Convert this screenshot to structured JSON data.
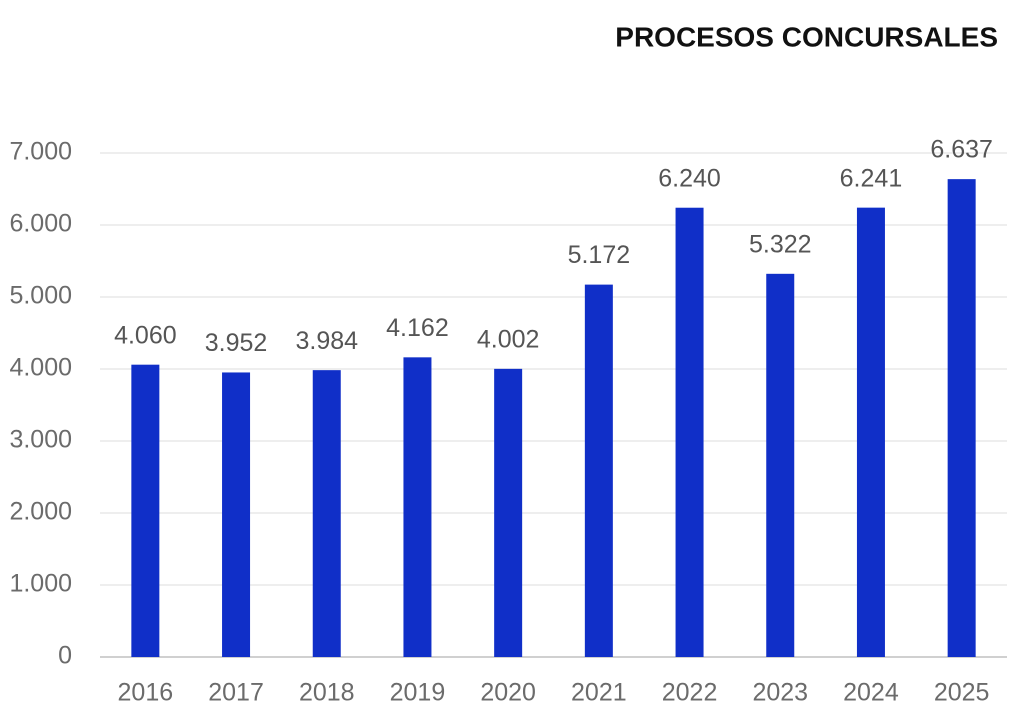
{
  "chart_data": {
    "type": "bar",
    "title": "PROCESOS CONCURSALES",
    "categories": [
      "2016",
      "2017",
      "2018",
      "2019",
      "2020",
      "2021",
      "2022",
      "2023",
      "2024",
      "2025"
    ],
    "values": [
      4060,
      3952,
      3984,
      4162,
      4002,
      5172,
      6240,
      5322,
      6241,
      6637
    ],
    "value_labels": [
      "4.060",
      "3.952",
      "3.984",
      "4.162",
      "4.002",
      "5.172",
      "6.240",
      "5.322",
      "6.241",
      "6.637"
    ],
    "color": "#102fc8",
    "ylim": [
      0,
      7000
    ],
    "yticks": [
      0,
      {
        "value": 1000,
        "label": "1.000"
      },
      {
        "value": 2000,
        "label": "2.000"
      },
      {
        "value": 3000,
        "label": "3.000"
      },
      {
        "value": 4000,
        "label": "4.000"
      },
      {
        "value": 5000,
        "label": "5.000"
      },
      {
        "value": 6000,
        "label": "6.000"
      },
      {
        "value": 7000,
        "label": "7.000"
      }
    ],
    "grid": true
  }
}
